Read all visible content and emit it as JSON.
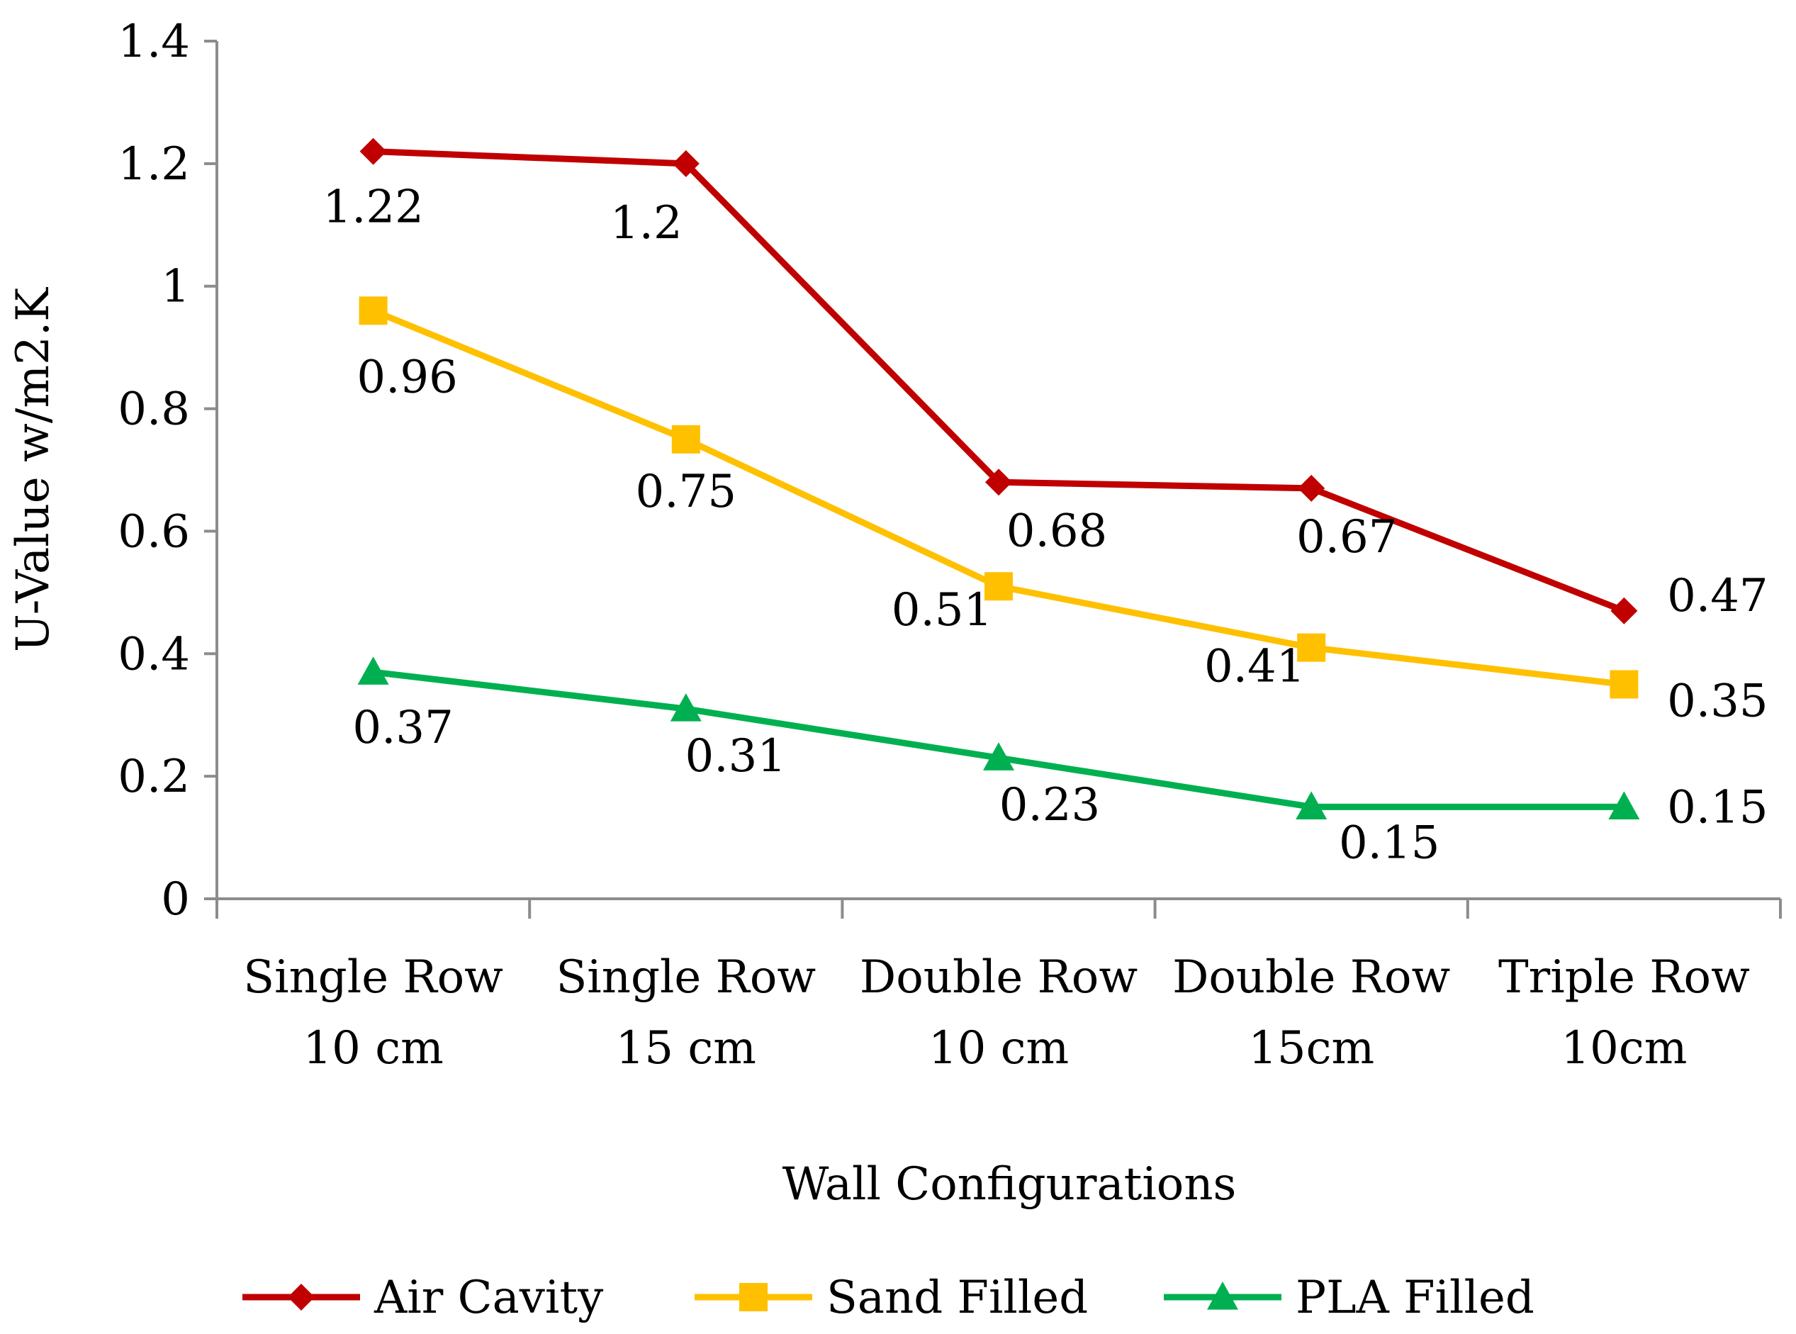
{
  "chart_data": {
    "type": "line",
    "title": "",
    "xlabel": "Wall Configurations",
    "ylabel": "U-Value w/m2.K",
    "categories": [
      [
        "Single Row",
        "10 cm"
      ],
      [
        "Single Row",
        "15 cm"
      ],
      [
        "Double Row",
        "10 cm"
      ],
      [
        "Double Row",
        "15cm"
      ],
      [
        "Triple Row",
        "10cm"
      ]
    ],
    "ylim": [
      0,
      1.4
    ],
    "yticks": [
      "0",
      "0.2",
      "0.4",
      "0.6",
      "0.8",
      "1",
      "1.2",
      "1.4"
    ],
    "grid": false,
    "legend_position": "bottom",
    "series": [
      {
        "name": "Air Cavity",
        "color": "#C00000",
        "marker": "diamond",
        "values": [
          1.22,
          1.2,
          0.68,
          0.67,
          0.47
        ],
        "labels": [
          "1.22",
          "1.2",
          "0.68",
          "0.67",
          "0.47"
        ]
      },
      {
        "name": "Sand Filled",
        "color": "#FFC000",
        "marker": "square",
        "values": [
          0.96,
          0.75,
          0.51,
          0.41,
          0.35
        ],
        "labels": [
          "0.96",
          "0.75",
          "0.51",
          "0.41",
          "0.35"
        ]
      },
      {
        "name": "PLA Filled",
        "color": "#00B050",
        "marker": "triangle",
        "values": [
          0.37,
          0.31,
          0.23,
          0.15,
          0.15
        ],
        "labels": [
          "0.37",
          "0.31",
          "0.23",
          "0.15",
          "0.15"
        ]
      }
    ]
  }
}
